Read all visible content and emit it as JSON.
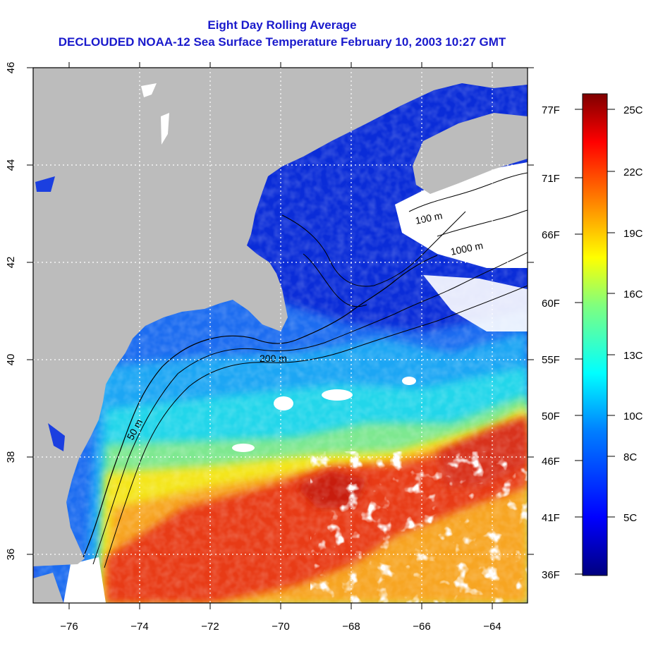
{
  "header": {
    "title_line1": "Eight Day Rolling Average",
    "title_line2": "DECLOUDED NOAA-12 Sea Surface Temperature February 10, 2003 10:27 GMT"
  },
  "map": {
    "lon_range": [
      -77,
      -63
    ],
    "lat_range": [
      35,
      46
    ],
    "lon_ticks": [
      "−76",
      "−74",
      "−72",
      "−70",
      "−68",
      "−66",
      "−64"
    ],
    "lat_ticks": [
      "36",
      "38",
      "40",
      "42",
      "44",
      "46"
    ],
    "grid": "dotted white at 2° intervals",
    "land_color": "#bcbcbc",
    "cloud_color": "#ffffff",
    "contour_labels": [
      "50 m",
      "100 m",
      "200 m",
      "1000 m"
    ],
    "depth_contours_m": [
      50,
      100,
      200,
      1000
    ]
  },
  "colorbar": {
    "fahrenheit_labels": [
      "77F",
      "71F",
      "66F",
      "60F",
      "55F",
      "50F",
      "46F",
      "41F",
      "36F"
    ],
    "celsius_labels": [
      "25C",
      "22C",
      "19C",
      "16C",
      "13C",
      "10C",
      "8C",
      "5C"
    ],
    "range_c": [
      2,
      26
    ],
    "palette": [
      "#00007f",
      "#0000ff",
      "#007fff",
      "#00ffff",
      "#7fff7f",
      "#ffff00",
      "#ff7f00",
      "#ff0000",
      "#7f0000"
    ]
  }
}
